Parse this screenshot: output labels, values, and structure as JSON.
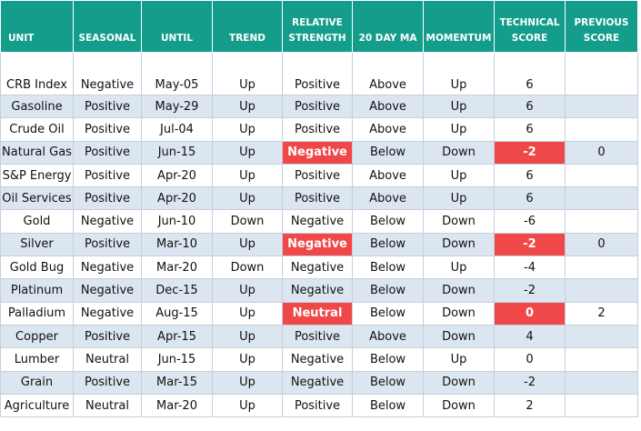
{
  "table": {
    "header": [
      "UNIT",
      "SEASONAL",
      "UNTIL",
      "TREND",
      "RELATIVE STRENGTH",
      "20 DAY MA",
      "MOMENTUM",
      "TECHNICAL SCORE",
      "PREVIOUS SCORE"
    ],
    "rows": [
      [
        "CRB Index",
        "Negative",
        "May-05",
        "Up",
        "Positive",
        "Above",
        "Up",
        6,
        null
      ],
      [
        "Gasoline",
        "Positive",
        "May-29",
        "Up",
        "Positive",
        "Above",
        "Up",
        6,
        null
      ],
      [
        "Crude Oil",
        "Positive",
        "Jul-04",
        "Up",
        "Positive",
        "Above",
        "Up",
        6,
        null
      ],
      [
        "Natural Gas",
        "Positive",
        "Jun-15",
        "Up",
        "Negative",
        "Below",
        "Down",
        -2,
        0
      ],
      [
        "S&P Energy",
        "Positive",
        "Apr-20",
        "Up",
        "Positive",
        "Above",
        "Up",
        6,
        null
      ],
      [
        "Oil Services",
        "Positive",
        "Apr-20",
        "Up",
        "Positive",
        "Above",
        "Up",
        6,
        null
      ],
      [
        "Gold",
        "Negative",
        "Jun-10",
        "Down",
        "Negative",
        "Below",
        "Down",
        -6,
        null
      ],
      [
        "Silver",
        "Positive",
        "Mar-10",
        "Up",
        "Negative",
        "Below",
        "Down",
        -2,
        0
      ],
      [
        "Gold Bug",
        "Negative",
        "Mar-20",
        "Down",
        "Negative",
        "Below",
        "Up",
        -4,
        null
      ],
      [
        "Platinum",
        "Negative",
        "Dec-15",
        "Up",
        "Negative",
        "Below",
        "Down",
        -2,
        null
      ],
      [
        "Palladium",
        "Negative",
        "Aug-15",
        "Up",
        "Neutral",
        "Below",
        "Down",
        0,
        2
      ],
      [
        "Copper",
        "Positive",
        "Apr-15",
        "Up",
        "Positive",
        "Above",
        "Down",
        4,
        null
      ],
      [
        "Lumber",
        "Neutral",
        "Jun-15",
        "Up",
        "Negative",
        "Below",
        "Up",
        0,
        null
      ],
      [
        "Grain",
        "Positive",
        "Mar-15",
        "Up",
        "Negative",
        "Below",
        "Down",
        -2,
        null
      ],
      [
        "Agriculture",
        "Neutral",
        "Mar-20",
        "Up",
        "Positive",
        "Below",
        "Down",
        2,
        null
      ]
    ],
    "highlighted_cells": [
      [
        3,
        4
      ],
      [
        3,
        7
      ],
      [
        7,
        4
      ],
      [
        7,
        7
      ],
      [
        10,
        4
      ],
      [
        10,
        7
      ]
    ],
    "highlight_color": "#f04848"
  }
}
